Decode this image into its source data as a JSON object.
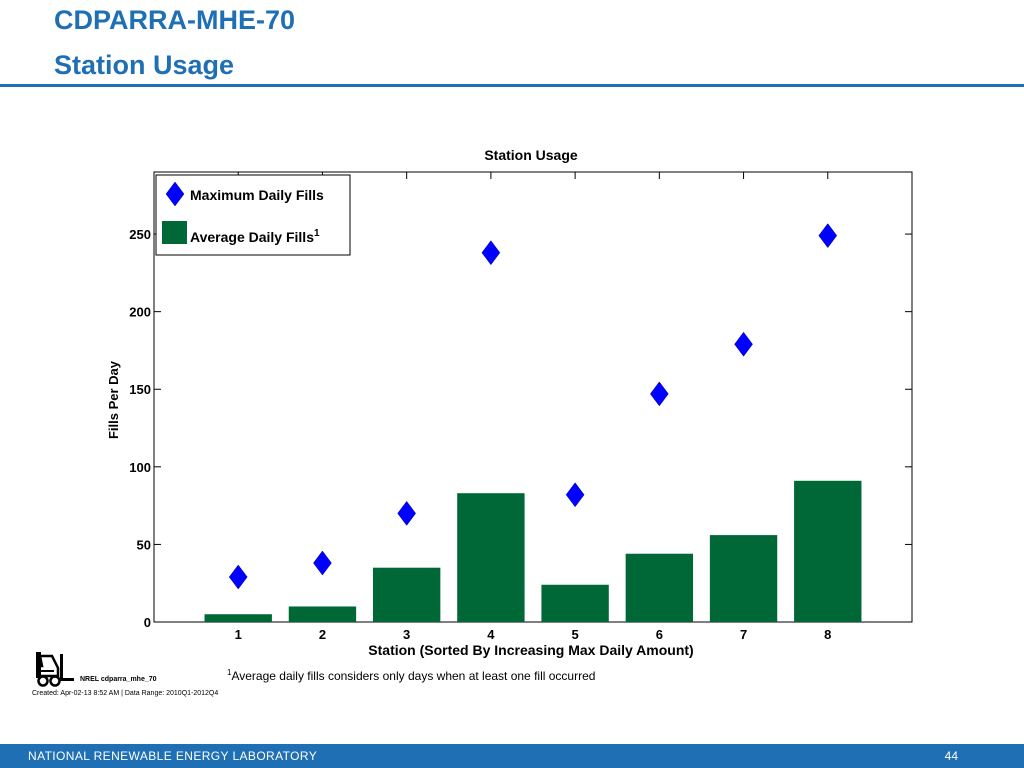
{
  "slide": {
    "title_line1": "CDPARRA-MHE-70",
    "title_line2": "Station Usage",
    "footnote_marker": "1",
    "footnote": "Average daily fills considers only days when at least one fill occurred",
    "nrel_id": "NREL cdparra_mhe_70",
    "created": "Created: Apr-02-13  8:52 AM | Data Range: 2010Q1-2012Q4",
    "footer_lab": "NATIONAL RENEWABLE ENERGY LABORATORY",
    "page_number": "44",
    "brand_color": "#1f6fb5",
    "logo_icon": "forklift-icon"
  },
  "chart_data": {
    "type": "bar",
    "title": "Station Usage",
    "xlabel": "Station (Sorted By Increasing Max Daily Amount)",
    "ylabel": "Fills Per Day",
    "categories": [
      "1",
      "2",
      "3",
      "4",
      "5",
      "6",
      "7",
      "8"
    ],
    "yticks": [
      0,
      50,
      100,
      150,
      200,
      250
    ],
    "ylim": [
      0,
      290
    ],
    "xlim": [
      0,
      9
    ],
    "grid": false,
    "legend_position": "top-left",
    "series": [
      {
        "name": "Maximum Daily Fills",
        "kind": "scatter",
        "marker": "diamond",
        "color": "#0000ff",
        "values": [
          29,
          38,
          70,
          238,
          82,
          147,
          179,
          249
        ]
      },
      {
        "name": "Average Daily Fills",
        "name_superscript": "1",
        "kind": "bar",
        "color": "#006837",
        "values": [
          5,
          10,
          35,
          83,
          24,
          44,
          56,
          91
        ]
      }
    ]
  }
}
